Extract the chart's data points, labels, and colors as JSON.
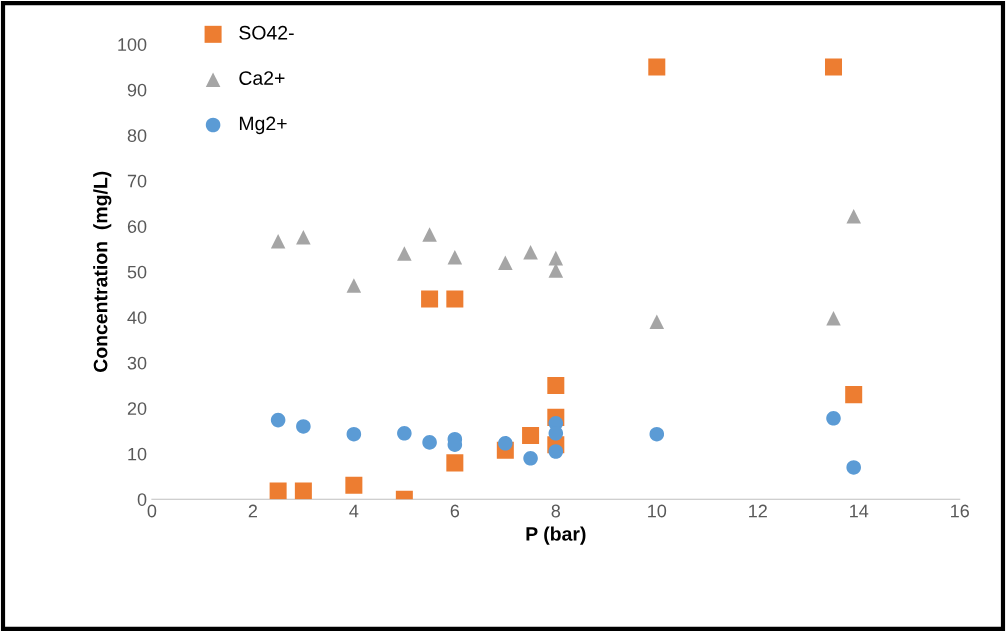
{
  "chart_data": {
    "type": "scatter",
    "xlabel": "P (bar)",
    "ylabel": "Concentration  (mg/L)",
    "xlim": [
      0,
      16
    ],
    "xticks": [
      0,
      2,
      4,
      6,
      8,
      10,
      12,
      14,
      16
    ],
    "ylim": [
      0,
      100
    ],
    "yticks": [
      0,
      10,
      20,
      30,
      40,
      50,
      60,
      70,
      80,
      90,
      100
    ],
    "grid": false,
    "legend": "top left",
    "series": [
      {
        "name": "SO42-",
        "color": "#ed7d31",
        "marker": "square",
        "x": [
          2.5,
          3,
          4,
          5,
          5.5,
          6,
          6,
          7,
          7.5,
          8,
          8,
          8,
          10,
          13.5,
          13.9
        ],
        "values": [
          1.8,
          1.8,
          3.1,
          0,
          44,
          44,
          8,
          10.8,
          14,
          18,
          25,
          12,
          95,
          95,
          23
        ]
      },
      {
        "name": "Ca2+",
        "color": "#a5a5a5",
        "marker": "triangle",
        "x": [
          2.5,
          3,
          4,
          5,
          5.5,
          6,
          7,
          7.5,
          8,
          8,
          10,
          13.5,
          13.9
        ],
        "values": [
          56.7,
          57.6,
          47,
          54,
          58.2,
          53.2,
          52,
          54.3,
          53,
          50.3,
          39,
          39.8,
          62.2
        ]
      },
      {
        "name": "Mg2+",
        "color": "#5b9bd5",
        "marker": "circle",
        "x": [
          2.5,
          3,
          4,
          5,
          5.5,
          6,
          6,
          7,
          7.5,
          8,
          8,
          8,
          10,
          13.5,
          13.9
        ],
        "values": [
          17.4,
          16,
          14.3,
          14.5,
          12.5,
          13.2,
          12,
          12.3,
          9,
          16.7,
          14.5,
          10.5,
          14.3,
          17.8,
          7
        ]
      }
    ]
  }
}
